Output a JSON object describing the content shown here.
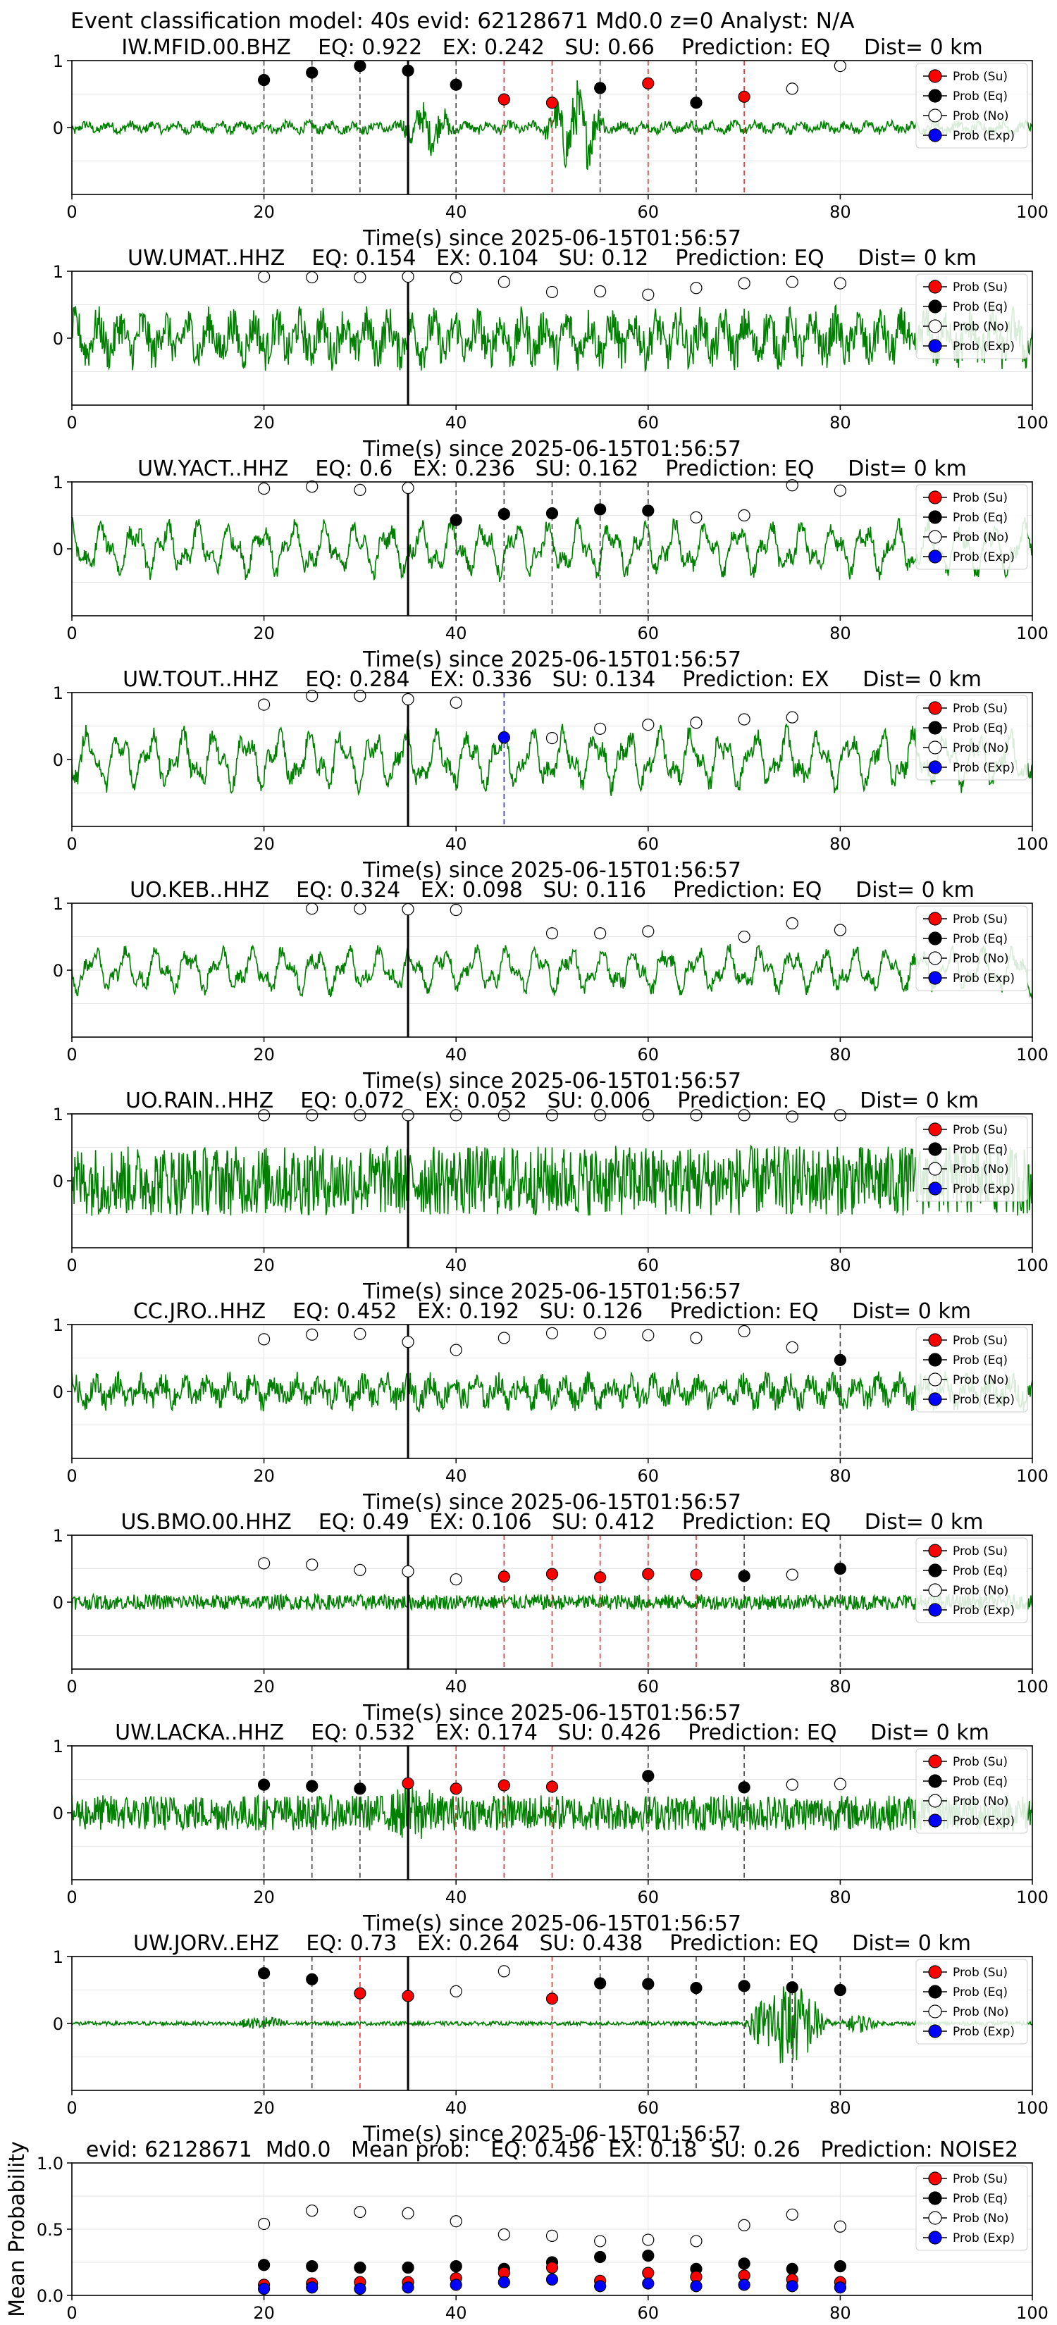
{
  "suptitle": "Event classification model: 40s evid: 62128671 Md0.0 z=0 Analyst: N/A",
  "legend_labels": [
    "Prob (Su)",
    "Prob (Eq)",
    "Prob (No)",
    "Prob (Exp)"
  ],
  "colors": {
    "su": "#ff0000",
    "eq": "#000000",
    "no": "#ffffff",
    "exp": "#0000ff",
    "trace": "#008000"
  },
  "chart_data": [
    {
      "type": "line",
      "title": "IW.MFID.00.BHZ    EQ: 0.922   EX: 0.242   SU: 0.66    Prediction: EQ     Dist= 0 km",
      "xlabel": "Time(s) since 2025-06-15T01:56:57",
      "ylabel": "",
      "xlim": [
        0,
        100
      ],
      "ylim": [
        -1,
        1
      ],
      "xticks": [
        0,
        20,
        40,
        60,
        80,
        100
      ],
      "yticks": [
        0,
        1
      ],
      "pick_time": 35,
      "waveform": {
        "amplitude": 0.12,
        "character": "mixed",
        "bursts": [
          [
            34,
            40,
            0.35
          ],
          [
            49,
            56,
            0.65
          ]
        ]
      },
      "points": [
        {
          "t": 20,
          "p": 0.71,
          "cls": "eq"
        },
        {
          "t": 25,
          "p": 0.82,
          "cls": "eq"
        },
        {
          "t": 30,
          "p": 0.92,
          "cls": "eq"
        },
        {
          "t": 35,
          "p": 0.85,
          "cls": "eq"
        },
        {
          "t": 40,
          "p": 0.64,
          "cls": "eq"
        },
        {
          "t": 45,
          "p": 0.42,
          "cls": "su"
        },
        {
          "t": 50,
          "p": 0.37,
          "cls": "su"
        },
        {
          "t": 55,
          "p": 0.59,
          "cls": "eq"
        },
        {
          "t": 60,
          "p": 0.66,
          "cls": "su"
        },
        {
          "t": 65,
          "p": 0.37,
          "cls": "eq"
        },
        {
          "t": 70,
          "p": 0.46,
          "cls": "su"
        },
        {
          "t": 75,
          "p": 0.58,
          "cls": "no"
        },
        {
          "t": 80,
          "p": 0.92,
          "cls": "no"
        }
      ]
    },
    {
      "type": "line",
      "title": "UW.UMAT..HHZ    EQ: 0.154   EX: 0.104   SU: 0.12    Prediction: EQ     Dist= 0 km",
      "xlabel": "Time(s) since 2025-06-15T01:56:57",
      "ylabel": "",
      "xlim": [
        0,
        100
      ],
      "ylim": [
        -1,
        1
      ],
      "xticks": [
        0,
        20,
        40,
        60,
        80,
        100
      ],
      "yticks": [
        0,
        1
      ],
      "pick_time": 35,
      "waveform": {
        "amplitude": 0.52,
        "character": "mixed",
        "bursts": []
      },
      "points": [
        {
          "t": 20,
          "p": 0.92,
          "cls": "no"
        },
        {
          "t": 25,
          "p": 0.91,
          "cls": "no"
        },
        {
          "t": 30,
          "p": 0.91,
          "cls": "no"
        },
        {
          "t": 35,
          "p": 0.92,
          "cls": "no"
        },
        {
          "t": 40,
          "p": 0.9,
          "cls": "no"
        },
        {
          "t": 45,
          "p": 0.84,
          "cls": "no"
        },
        {
          "t": 50,
          "p": 0.69,
          "cls": "no"
        },
        {
          "t": 55,
          "p": 0.7,
          "cls": "no"
        },
        {
          "t": 60,
          "p": 0.65,
          "cls": "no"
        },
        {
          "t": 65,
          "p": 0.75,
          "cls": "no"
        },
        {
          "t": 70,
          "p": 0.82,
          "cls": "no"
        },
        {
          "t": 75,
          "p": 0.84,
          "cls": "no"
        },
        {
          "t": 80,
          "p": 0.82,
          "cls": "no"
        }
      ]
    },
    {
      "type": "line",
      "title": "UW.YACT..HHZ    EQ: 0.6   EX: 0.236   SU: 0.162    Prediction: EQ     Dist= 0 km",
      "xlabel": "Time(s) since 2025-06-15T01:56:57",
      "ylabel": "",
      "xlim": [
        0,
        100
      ],
      "ylim": [
        -1,
        1
      ],
      "xticks": [
        0,
        20,
        40,
        60,
        80,
        100
      ],
      "yticks": [
        0,
        1
      ],
      "pick_time": 35,
      "waveform": {
        "amplitude": 0.45,
        "character": "low",
        "bursts": []
      },
      "points": [
        {
          "t": 20,
          "p": 0.9,
          "cls": "no"
        },
        {
          "t": 25,
          "p": 0.93,
          "cls": "no"
        },
        {
          "t": 30,
          "p": 0.88,
          "cls": "no"
        },
        {
          "t": 35,
          "p": 0.91,
          "cls": "no"
        },
        {
          "t": 40,
          "p": 0.43,
          "cls": "eq"
        },
        {
          "t": 45,
          "p": 0.52,
          "cls": "eq"
        },
        {
          "t": 50,
          "p": 0.53,
          "cls": "eq"
        },
        {
          "t": 55,
          "p": 0.59,
          "cls": "eq"
        },
        {
          "t": 60,
          "p": 0.57,
          "cls": "eq"
        },
        {
          "t": 65,
          "p": 0.47,
          "cls": "no"
        },
        {
          "t": 70,
          "p": 0.5,
          "cls": "no"
        },
        {
          "t": 75,
          "p": 0.95,
          "cls": "no"
        },
        {
          "t": 80,
          "p": 0.87,
          "cls": "no"
        }
      ]
    },
    {
      "type": "line",
      "title": "UW.TOUT..HHZ    EQ: 0.284   EX: 0.336   SU: 0.134    Prediction: EX     Dist= 0 km",
      "xlabel": "Time(s) since 2025-06-15T01:56:57",
      "ylabel": "",
      "xlim": [
        0,
        100
      ],
      "ylim": [
        -1,
        1
      ],
      "xticks": [
        0,
        20,
        40,
        60,
        80,
        100
      ],
      "yticks": [
        0,
        1
      ],
      "pick_time": 35,
      "waveform": {
        "amplitude": 0.5,
        "character": "low",
        "bursts": []
      },
      "points": [
        {
          "t": 20,
          "p": 0.82,
          "cls": "no"
        },
        {
          "t": 25,
          "p": 0.95,
          "cls": "no"
        },
        {
          "t": 30,
          "p": 0.95,
          "cls": "no"
        },
        {
          "t": 35,
          "p": 0.9,
          "cls": "no"
        },
        {
          "t": 40,
          "p": 0.85,
          "cls": "no"
        },
        {
          "t": 45,
          "p": 0.33,
          "cls": "exp"
        },
        {
          "t": 50,
          "p": 0.32,
          "cls": "no"
        },
        {
          "t": 55,
          "p": 0.46,
          "cls": "no"
        },
        {
          "t": 60,
          "p": 0.52,
          "cls": "no"
        },
        {
          "t": 65,
          "p": 0.55,
          "cls": "no"
        },
        {
          "t": 70,
          "p": 0.6,
          "cls": "no"
        },
        {
          "t": 75,
          "p": 0.63,
          "cls": "no"
        }
      ]
    },
    {
      "type": "line",
      "title": "UO.KEB..HHZ    EQ: 0.324   EX: 0.098   SU: 0.116    Prediction: EQ     Dist= 0 km",
      "xlabel": "Time(s) since 2025-06-15T01:56:57",
      "ylabel": "",
      "xlim": [
        0,
        100
      ],
      "ylim": [
        -1,
        1
      ],
      "xticks": [
        0,
        20,
        40,
        60,
        80,
        100
      ],
      "yticks": [
        0,
        1
      ],
      "pick_time": 35,
      "waveform": {
        "amplitude": 0.38,
        "character": "low",
        "bursts": []
      },
      "points": [
        {
          "t": 25,
          "p": 0.92,
          "cls": "no"
        },
        {
          "t": 30,
          "p": 0.92,
          "cls": "no"
        },
        {
          "t": 35,
          "p": 0.91,
          "cls": "no"
        },
        {
          "t": 40,
          "p": 0.9,
          "cls": "no"
        },
        {
          "t": 50,
          "p": 0.55,
          "cls": "no"
        },
        {
          "t": 55,
          "p": 0.55,
          "cls": "no"
        },
        {
          "t": 60,
          "p": 0.58,
          "cls": "no"
        },
        {
          "t": 70,
          "p": 0.5,
          "cls": "no"
        },
        {
          "t": 75,
          "p": 0.7,
          "cls": "no"
        },
        {
          "t": 80,
          "p": 0.6,
          "cls": "no"
        }
      ]
    },
    {
      "type": "line",
      "title": "UO.RAIN..HHZ    EQ: 0.072   EX: 0.052   SU: 0.006    Prediction: EQ     Dist= 0 km",
      "xlabel": "Time(s) since 2025-06-15T01:56:57",
      "ylabel": "",
      "xlim": [
        0,
        100
      ],
      "ylim": [
        -1,
        1
      ],
      "xticks": [
        0,
        20,
        40,
        60,
        80,
        100
      ],
      "yticks": [
        0,
        1
      ],
      "pick_time": 35,
      "waveform": {
        "amplitude": 0.55,
        "character": "high",
        "bursts": []
      },
      "points": [
        {
          "t": 20,
          "p": 0.98,
          "cls": "no"
        },
        {
          "t": 25,
          "p": 0.98,
          "cls": "no"
        },
        {
          "t": 30,
          "p": 0.98,
          "cls": "no"
        },
        {
          "t": 35,
          "p": 0.98,
          "cls": "no"
        },
        {
          "t": 40,
          "p": 0.98,
          "cls": "no"
        },
        {
          "t": 45,
          "p": 0.98,
          "cls": "no"
        },
        {
          "t": 50,
          "p": 0.98,
          "cls": "no"
        },
        {
          "t": 55,
          "p": 0.98,
          "cls": "no"
        },
        {
          "t": 60,
          "p": 0.98,
          "cls": "no"
        },
        {
          "t": 65,
          "p": 0.98,
          "cls": "no"
        },
        {
          "t": 70,
          "p": 0.98,
          "cls": "no"
        },
        {
          "t": 75,
          "p": 0.96,
          "cls": "no"
        },
        {
          "t": 80,
          "p": 0.98,
          "cls": "no"
        }
      ]
    },
    {
      "type": "line",
      "title": "CC.JRO..HHZ    EQ: 0.452   EX: 0.192   SU: 0.126    Prediction: EQ     Dist= 0 km",
      "xlabel": "Time(s) since 2025-06-15T01:56:57",
      "ylabel": "",
      "xlim": [
        0,
        100
      ],
      "ylim": [
        -1,
        1
      ],
      "xticks": [
        0,
        20,
        40,
        60,
        80,
        100
      ],
      "yticks": [
        0,
        1
      ],
      "pick_time": 35,
      "waveform": {
        "amplitude": 0.32,
        "character": "mixed",
        "bursts": []
      },
      "points": [
        {
          "t": 20,
          "p": 0.78,
          "cls": "no"
        },
        {
          "t": 25,
          "p": 0.85,
          "cls": "no"
        },
        {
          "t": 30,
          "p": 0.86,
          "cls": "no"
        },
        {
          "t": 35,
          "p": 0.74,
          "cls": "no"
        },
        {
          "t": 40,
          "p": 0.62,
          "cls": "no"
        },
        {
          "t": 45,
          "p": 0.8,
          "cls": "no"
        },
        {
          "t": 50,
          "p": 0.87,
          "cls": "no"
        },
        {
          "t": 55,
          "p": 0.87,
          "cls": "no"
        },
        {
          "t": 60,
          "p": 0.84,
          "cls": "no"
        },
        {
          "t": 65,
          "p": 0.8,
          "cls": "no"
        },
        {
          "t": 70,
          "p": 0.9,
          "cls": "no"
        },
        {
          "t": 75,
          "p": 0.66,
          "cls": "no"
        },
        {
          "t": 80,
          "p": 0.47,
          "cls": "eq"
        }
      ]
    },
    {
      "type": "line",
      "title": "US.BMO.00.HHZ    EQ: 0.49   EX: 0.106   SU: 0.412    Prediction: EQ     Dist= 0 km",
      "xlabel": "Time(s) since 2025-06-15T01:56:57",
      "ylabel": "",
      "xlim": [
        0,
        100
      ],
      "ylim": [
        -1,
        1
      ],
      "xticks": [
        0,
        20,
        40,
        60,
        80,
        100
      ],
      "yticks": [
        0,
        1
      ],
      "pick_time": 35,
      "waveform": {
        "amplitude": 0.12,
        "character": "high",
        "bursts": []
      },
      "points": [
        {
          "t": 20,
          "p": 0.58,
          "cls": "no"
        },
        {
          "t": 25,
          "p": 0.56,
          "cls": "no"
        },
        {
          "t": 30,
          "p": 0.48,
          "cls": "no"
        },
        {
          "t": 35,
          "p": 0.46,
          "cls": "no"
        },
        {
          "t": 40,
          "p": 0.34,
          "cls": "no"
        },
        {
          "t": 45,
          "p": 0.38,
          "cls": "su"
        },
        {
          "t": 50,
          "p": 0.42,
          "cls": "su"
        },
        {
          "t": 55,
          "p": 0.37,
          "cls": "su"
        },
        {
          "t": 60,
          "p": 0.42,
          "cls": "su"
        },
        {
          "t": 65,
          "p": 0.41,
          "cls": "su"
        },
        {
          "t": 70,
          "p": 0.39,
          "cls": "eq"
        },
        {
          "t": 75,
          "p": 0.41,
          "cls": "no"
        },
        {
          "t": 80,
          "p": 0.5,
          "cls": "eq"
        }
      ]
    },
    {
      "type": "line",
      "title": "UW.LACKA..HHZ    EQ: 0.532   EX: 0.174   SU: 0.426    Prediction: EQ     Dist= 0 km",
      "xlabel": "Time(s) since 2025-06-15T01:56:57",
      "ylabel": "",
      "xlim": [
        0,
        100
      ],
      "ylim": [
        -1,
        1
      ],
      "xticks": [
        0,
        20,
        40,
        60,
        80,
        100
      ],
      "yticks": [
        0,
        1
      ],
      "pick_time": 35,
      "waveform": {
        "amplitude": 0.28,
        "character": "high",
        "bursts": [
          [
            33,
            38,
            0.2
          ]
        ]
      },
      "points": [
        {
          "t": 20,
          "p": 0.42,
          "cls": "eq"
        },
        {
          "t": 25,
          "p": 0.4,
          "cls": "eq"
        },
        {
          "t": 30,
          "p": 0.36,
          "cls": "eq"
        },
        {
          "t": 35,
          "p": 0.44,
          "cls": "su"
        },
        {
          "t": 40,
          "p": 0.36,
          "cls": "su"
        },
        {
          "t": 45,
          "p": 0.41,
          "cls": "su"
        },
        {
          "t": 50,
          "p": 0.39,
          "cls": "su"
        },
        {
          "t": 60,
          "p": 0.55,
          "cls": "eq"
        },
        {
          "t": 70,
          "p": 0.38,
          "cls": "eq"
        },
        {
          "t": 75,
          "p": 0.42,
          "cls": "no"
        },
        {
          "t": 80,
          "p": 0.43,
          "cls": "no"
        }
      ]
    },
    {
      "type": "line",
      "title": "UW.JORV..EHZ    EQ: 0.73   EX: 0.264   SU: 0.438    Prediction: EQ     Dist= 0 km",
      "xlabel": "Time(s) since 2025-06-15T01:56:57",
      "ylabel": "",
      "xlim": [
        0,
        100
      ],
      "ylim": [
        -1,
        1
      ],
      "xticks": [
        0,
        20,
        40,
        60,
        80,
        100
      ],
      "yticks": [
        0,
        1
      ],
      "pick_time": 35,
      "waveform": {
        "amplitude": 0.03,
        "character": "high",
        "bursts": [
          [
            17,
            23,
            0.08
          ],
          [
            70,
            79,
            0.65
          ],
          [
            80,
            84,
            0.12
          ]
        ]
      },
      "points": [
        {
          "t": 20,
          "p": 0.75,
          "cls": "eq"
        },
        {
          "t": 25,
          "p": 0.66,
          "cls": "eq"
        },
        {
          "t": 30,
          "p": 0.45,
          "cls": "su"
        },
        {
          "t": 35,
          "p": 0.41,
          "cls": "su"
        },
        {
          "t": 40,
          "p": 0.48,
          "cls": "no"
        },
        {
          "t": 45,
          "p": 0.78,
          "cls": "no"
        },
        {
          "t": 50,
          "p": 0.37,
          "cls": "su"
        },
        {
          "t": 55,
          "p": 0.6,
          "cls": "eq"
        },
        {
          "t": 60,
          "p": 0.59,
          "cls": "eq"
        },
        {
          "t": 65,
          "p": 0.53,
          "cls": "eq"
        },
        {
          "t": 70,
          "p": 0.56,
          "cls": "eq"
        },
        {
          "t": 75,
          "p": 0.54,
          "cls": "eq"
        },
        {
          "t": 80,
          "p": 0.5,
          "cls": "eq"
        }
      ]
    },
    {
      "type": "scatter",
      "title": "evid: 62128671  Md0.0   Mean prob:   EQ: 0.456  EX: 0.18  SU: 0.26   Prediction: NOISE2",
      "xlabel": "",
      "ylabel": "Mean Probability",
      "xlim": [
        0,
        100
      ],
      "ylim": [
        0,
        1
      ],
      "xticks": [
        0,
        20,
        40,
        60,
        80,
        100
      ],
      "yticks": [
        0.0,
        0.5,
        1.0
      ],
      "x": [
        20,
        25,
        30,
        35,
        40,
        45,
        50,
        55,
        60,
        65,
        70,
        75,
        80
      ],
      "series": [
        {
          "name": "Prob (No)",
          "cls": "no",
          "values": [
            0.54,
            0.64,
            0.63,
            0.62,
            0.56,
            0.46,
            0.45,
            0.41,
            0.42,
            0.41,
            0.53,
            0.61,
            0.52
          ]
        },
        {
          "name": "Prob (Eq)",
          "cls": "eq",
          "values": [
            0.23,
            0.22,
            0.21,
            0.21,
            0.22,
            0.2,
            0.25,
            0.29,
            0.3,
            0.2,
            0.24,
            0.2,
            0.22
          ]
        },
        {
          "name": "Prob (Su)",
          "cls": "su",
          "values": [
            0.08,
            0.09,
            0.1,
            0.1,
            0.13,
            0.17,
            0.21,
            0.11,
            0.17,
            0.14,
            0.15,
            0.12,
            0.1
          ]
        },
        {
          "name": "Prob (Exp)",
          "cls": "exp",
          "values": [
            0.05,
            0.06,
            0.05,
            0.06,
            0.08,
            0.1,
            0.12,
            0.07,
            0.09,
            0.07,
            0.08,
            0.07,
            0.06
          ]
        }
      ]
    }
  ]
}
